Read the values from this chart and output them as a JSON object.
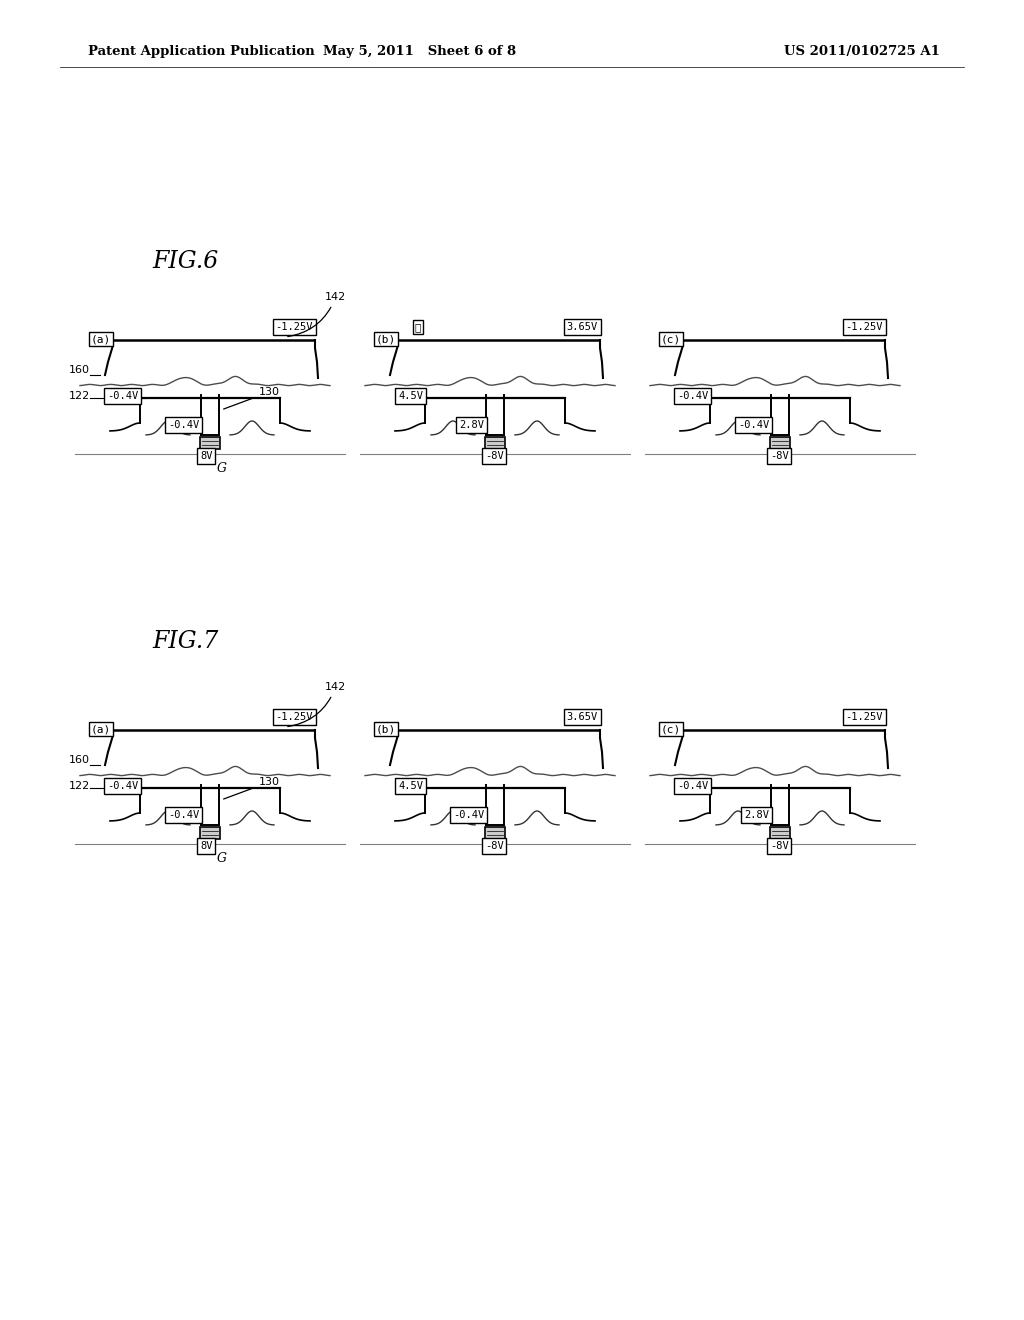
{
  "bg_color": "#ffffff",
  "header_left": "Patent Application Publication",
  "header_center": "May 5, 2011   Sheet 6 of 8",
  "header_right": "US 2011/0102725 A1",
  "fig6_title": "FIG.6",
  "fig7_title": "FIG.7",
  "panel_labels": [
    "(a)",
    "(b)",
    "(c)"
  ],
  "fig6_voltages_a": [
    "-1.25V",
    "-0.4V",
    "-0.4V",
    "8V"
  ],
  "fig6_voltages_b": [
    "3.65V",
    "4.5V",
    "2.8V",
    "-8V"
  ],
  "fig6_voltages_c": [
    "-1.25V",
    "-0.4V",
    "-0.4V",
    "-8V"
  ],
  "fig7_voltages_a": [
    "-1.25V",
    "-0.4V",
    "-0.4V",
    "8V"
  ],
  "fig7_voltages_b": [
    "3.65V",
    "4.5V",
    "-0.4V",
    "-8V"
  ],
  "fig7_voltages_c": [
    "-1.25V",
    "-0.4V",
    "2.8V",
    "-8V"
  ],
  "ref_142": "142",
  "ref_160": "160",
  "ref_122": "122",
  "ref_130": "130",
  "ref_G": "G",
  "fig6_b_special": "黒"
}
